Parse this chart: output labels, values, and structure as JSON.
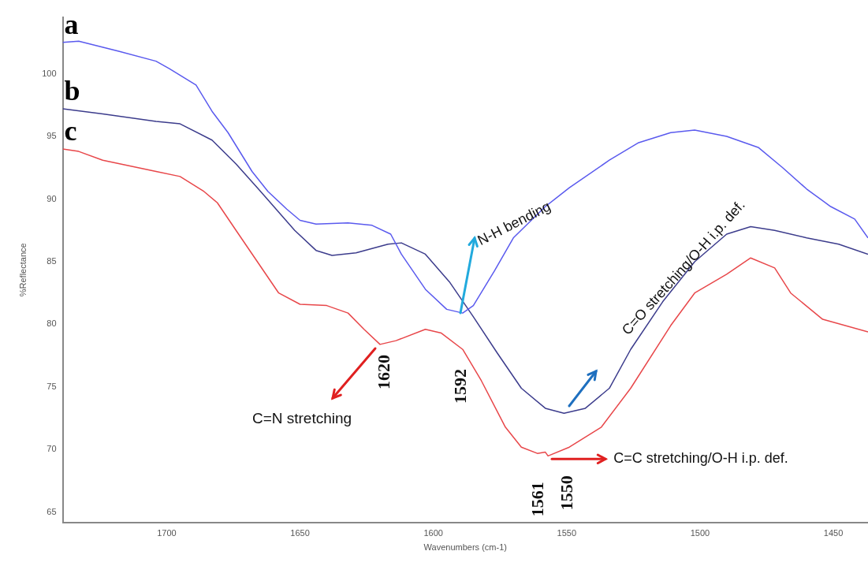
{
  "chart_data": {
    "type": "line",
    "xlabel": "Wavenumbers (cm-1)",
    "ylabel": "%Reflectance",
    "xlim": [
      1739,
      1437
    ],
    "ylim": [
      64.2,
      104.5
    ],
    "xticks": [
      1700,
      1650,
      1600,
      1550,
      1500,
      1450
    ],
    "yticks": [
      65,
      70,
      75,
      80,
      85,
      90,
      95,
      100
    ],
    "grid": false,
    "legend": false,
    "marker": "none",
    "line_style": "solid",
    "series": [
      {
        "name": "a",
        "color": "#5a5aee",
        "x": [
          1739,
          1733,
          1718,
          1704,
          1699,
          1689,
          1683,
          1677,
          1668,
          1662,
          1655,
          1650,
          1644,
          1632,
          1623,
          1616,
          1612,
          1603,
          1595,
          1589,
          1585,
          1577,
          1570,
          1558,
          1549,
          1534,
          1523,
          1511,
          1502,
          1490,
          1478,
          1469,
          1460,
          1451,
          1442,
          1437
        ],
        "values": [
          102.5,
          102.6,
          101.8,
          101,
          100.4,
          99.1,
          97,
          95.3,
          92.2,
          90.6,
          89.2,
          88.3,
          88,
          88.1,
          87.9,
          87.2,
          85.6,
          82.8,
          81.2,
          80.9,
          81.5,
          84.3,
          86.9,
          89.4,
          90.9,
          93.1,
          94.5,
          95.3,
          95.5,
          95,
          94.1,
          92.5,
          90.8,
          89.4,
          88.4,
          86.9
        ]
      },
      {
        "name": "b",
        "color": "#3c3c8c",
        "x": [
          1739,
          1724,
          1704,
          1695,
          1683,
          1674,
          1666,
          1659,
          1652,
          1644,
          1638,
          1629,
          1617,
          1612,
          1603,
          1594,
          1585,
          1576,
          1567,
          1558,
          1551,
          1543,
          1534,
          1526,
          1514,
          1502,
          1490,
          1481,
          1472,
          1460,
          1448,
          1437
        ],
        "values": [
          97.2,
          96.8,
          96.2,
          96,
          94.7,
          92.8,
          90.9,
          89.2,
          87.5,
          85.9,
          85.5,
          85.7,
          86.4,
          86.5,
          85.6,
          83.4,
          80.6,
          77.7,
          74.9,
          73.3,
          72.9,
          73.3,
          74.9,
          78,
          81.8,
          85,
          87.2,
          87.8,
          87.5,
          86.9,
          86.4,
          85.6
        ]
      },
      {
        "name": "c",
        "color": "#e8474a",
        "x": [
          1739,
          1733,
          1724,
          1704,
          1695,
          1686,
          1681,
          1674,
          1666,
          1658,
          1650,
          1640,
          1632,
          1626,
          1620,
          1614,
          1603,
          1597,
          1589,
          1582,
          1573,
          1567,
          1561,
          1558,
          1557,
          1549,
          1537,
          1526,
          1511,
          1502,
          1490,
          1481,
          1472,
          1466,
          1454,
          1437
        ],
        "values": [
          94,
          93.8,
          93.1,
          92.2,
          91.8,
          90.6,
          89.7,
          87.5,
          85,
          82.5,
          81.6,
          81.5,
          80.9,
          79.6,
          78.4,
          78.7,
          79.6,
          79.3,
          78,
          75.5,
          71.8,
          70.2,
          69.7,
          69.8,
          69.5,
          70.2,
          71.8,
          74.9,
          79.9,
          82.5,
          84,
          85.3,
          84.5,
          82.5,
          80.4,
          79.4
        ]
      }
    ],
    "annotations": [
      {
        "text": "N-H bending",
        "x": 1590,
        "y": 80.9
      },
      {
        "text": "C=O stretching/O-H i.p. def.",
        "x": 1506,
        "y": 84.5
      },
      "C=N stretching",
      {
        "text": "C=C stretching/O-H i.p. def.",
        "x": 1557,
        "y": 69.5
      },
      {
        "text": "1620",
        "x": 1620,
        "y": 78.4
      },
      "1592",
      {
        "text": "1561",
        "x": 1561,
        "y": 69.7
      },
      {
        "text": "1550",
        "x": 1550,
        "y": 70.2
      }
    ]
  }
}
